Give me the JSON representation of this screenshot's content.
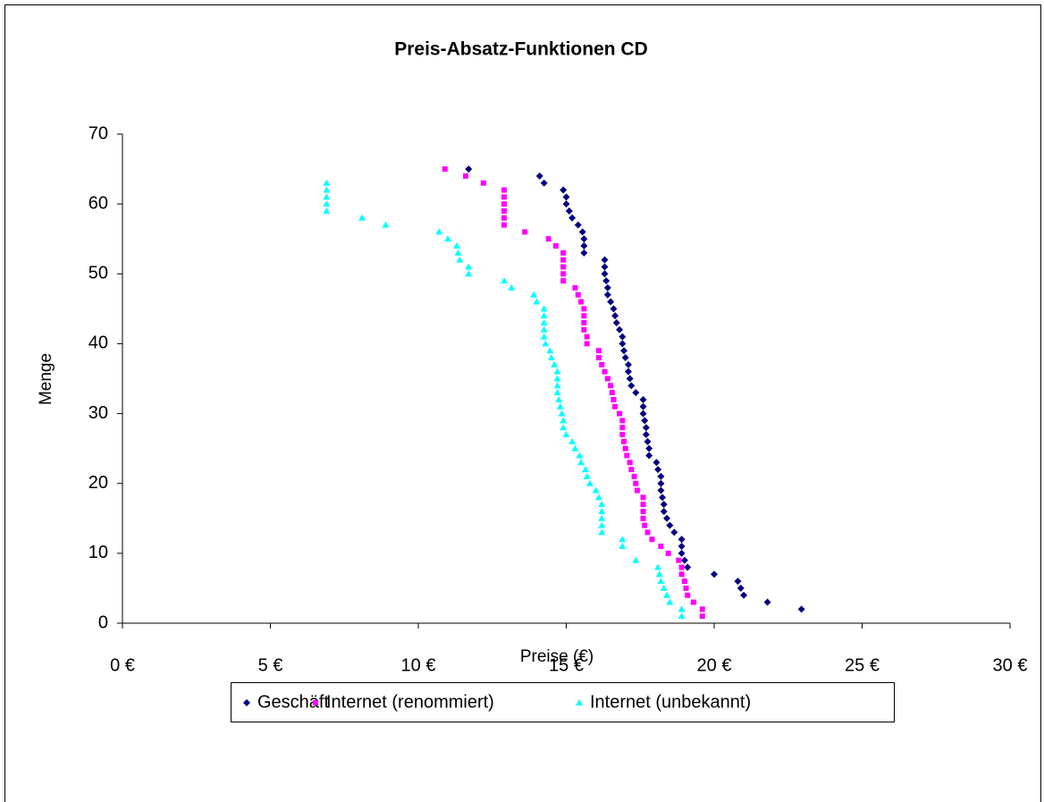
{
  "chart_data": {
    "type": "scatter",
    "title": "Preis-Absatz-Funktionen CD",
    "xlabel": "Preise (€)",
    "ylabel": "Menge",
    "xlim": [
      0,
      30
    ],
    "ylim": [
      0,
      70
    ],
    "xticks": [
      {
        "value": 0,
        "label": "0 €"
      },
      {
        "value": 5,
        "label": "5 €"
      },
      {
        "value": 10,
        "label": "10 €"
      },
      {
        "value": 15,
        "label": "15 €"
      },
      {
        "value": 20,
        "label": "20 €"
      },
      {
        "value": 25,
        "label": "25 €"
      },
      {
        "value": 30,
        "label": "30 €"
      }
    ],
    "yticks": [
      0,
      10,
      20,
      30,
      40,
      50,
      60,
      70
    ],
    "legend": "bottom",
    "series": [
      {
        "name": "Geschäft",
        "color": "#000080",
        "marker": "diamond",
        "x": [
          11.7,
          14.1,
          14.25,
          14.9,
          15.0,
          15.0,
          15.1,
          15.2,
          15.4,
          15.55,
          15.6,
          15.6,
          15.6,
          16.3,
          16.3,
          16.3,
          16.35,
          16.4,
          16.4,
          16.5,
          16.6,
          16.65,
          16.7,
          16.8,
          16.9,
          16.9,
          16.95,
          17.0,
          17.1,
          17.1,
          17.15,
          17.2,
          17.35,
          17.6,
          17.6,
          17.6,
          17.65,
          17.7,
          17.7,
          17.75,
          17.8,
          17.8,
          18.05,
          18.1,
          18.2,
          18.2,
          18.2,
          18.25,
          18.3,
          18.3,
          18.4,
          18.5,
          18.65,
          18.9,
          18.9,
          18.9,
          19.0,
          19.1,
          20.0,
          20.8,
          20.9,
          21.0,
          21.8,
          22.95
        ],
        "values": [
          65,
          64,
          63,
          62,
          61,
          60,
          59,
          58,
          57,
          56,
          55,
          54,
          53,
          52,
          51,
          50,
          49,
          48,
          47,
          46,
          45,
          44,
          43,
          42,
          41,
          40,
          39,
          38,
          37,
          36,
          35,
          34,
          33,
          32,
          31,
          30,
          29,
          28,
          27,
          26,
          25,
          24,
          23,
          22,
          21,
          20,
          19,
          18,
          17,
          16,
          15,
          14,
          13,
          12,
          11,
          10,
          9,
          8,
          7,
          6,
          5,
          4,
          3,
          2
        ]
      },
      {
        "name": "Internet (renommiert)",
        "color": "#ff00ff",
        "marker": "square",
        "x": [
          10.9,
          11.6,
          12.2,
          12.9,
          12.9,
          12.9,
          12.9,
          12.9,
          12.9,
          13.6,
          14.4,
          14.65,
          14.9,
          14.9,
          14.9,
          14.9,
          14.9,
          15.3,
          15.4,
          15.5,
          15.6,
          15.6,
          15.6,
          15.6,
          15.7,
          15.7,
          16.1,
          16.1,
          16.2,
          16.3,
          16.4,
          16.5,
          16.55,
          16.6,
          16.65,
          16.8,
          16.9,
          16.9,
          16.9,
          16.95,
          17.0,
          17.05,
          17.15,
          17.2,
          17.3,
          17.35,
          17.4,
          17.6,
          17.6,
          17.6,
          17.6,
          17.65,
          17.75,
          17.9,
          18.2,
          18.45,
          18.8,
          18.9,
          18.9,
          19.0,
          19.05,
          19.1,
          19.3,
          19.6,
          19.6
        ],
        "values": [
          65,
          64,
          63,
          62,
          61,
          60,
          59,
          58,
          57,
          56,
          55,
          54,
          53,
          52,
          51,
          50,
          49,
          48,
          47,
          46,
          45,
          44,
          43,
          42,
          41,
          40,
          39,
          38,
          37,
          36,
          35,
          34,
          33,
          32,
          31,
          30,
          29,
          28,
          27,
          26,
          25,
          24,
          23,
          22,
          21,
          20,
          19,
          18,
          17,
          16,
          15,
          14,
          13,
          12,
          11,
          10,
          9,
          8,
          7,
          6,
          5,
          4,
          3,
          2,
          1
        ]
      },
      {
        "name": "Internet (unbekannt)",
        "color": "#00ffff",
        "marker": "triangle",
        "x": [
          6.9,
          6.9,
          6.9,
          6.9,
          6.9,
          8.1,
          8.9,
          10.7,
          11.0,
          11.3,
          11.35,
          11.4,
          11.7,
          11.7,
          12.9,
          13.15,
          13.9,
          14.0,
          14.25,
          14.25,
          14.25,
          14.25,
          14.25,
          14.3,
          14.45,
          14.5,
          14.6,
          14.7,
          14.7,
          14.7,
          14.7,
          14.75,
          14.8,
          14.85,
          14.9,
          14.9,
          15.0,
          15.2,
          15.3,
          15.45,
          15.5,
          15.65,
          15.7,
          15.8,
          16.0,
          16.1,
          16.2,
          16.2,
          16.2,
          16.2,
          16.2,
          16.9,
          16.9,
          17.35,
          18.1,
          18.15,
          18.2,
          18.3,
          18.4,
          18.5,
          18.9,
          18.9
        ],
        "values": [
          63,
          62,
          61,
          60,
          59,
          58,
          57,
          56,
          55,
          54,
          53,
          52,
          51,
          50,
          49,
          48,
          47,
          46,
          45,
          44,
          43,
          42,
          41,
          40,
          39,
          38,
          37,
          36,
          35,
          34,
          33,
          32,
          31,
          30,
          29,
          28,
          27,
          26,
          25,
          24,
          23,
          22,
          21,
          20,
          19,
          18,
          17,
          16,
          15,
          14,
          13,
          12,
          11,
          9,
          8,
          7,
          6,
          5,
          4,
          3,
          2,
          1
        ]
      }
    ]
  }
}
